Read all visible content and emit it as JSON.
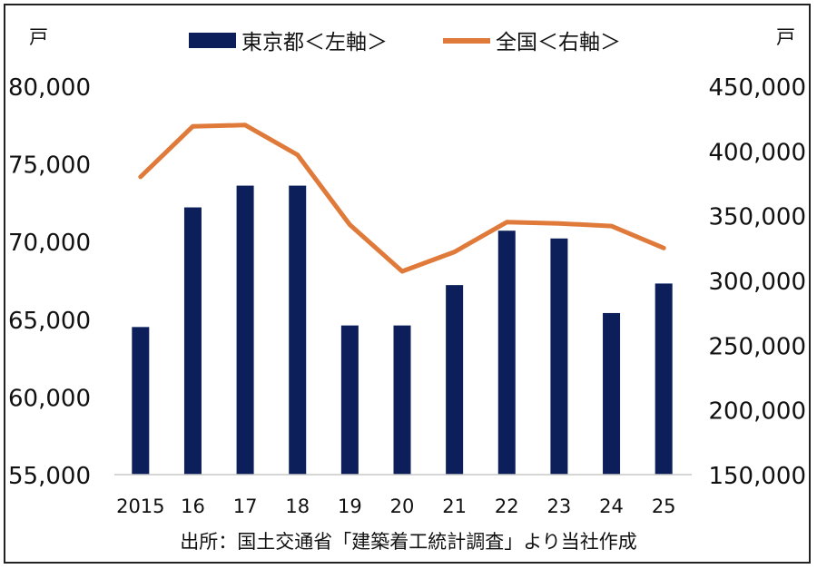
{
  "chart_data": {
    "type": "bar+line",
    "title": "",
    "categories": [
      "2015",
      "16",
      "17",
      "18",
      "19",
      "20",
      "21",
      "22",
      "23",
      "24",
      "25"
    ],
    "series": [
      {
        "name": "東京都＜左軸＞",
        "type": "bar",
        "axis": "left",
        "color": "#0c1f5a",
        "values": [
          64500,
          72200,
          73600,
          73600,
          64600,
          64600,
          67200,
          70700,
          70200,
          65400,
          67300
        ]
      },
      {
        "name": "全国＜右軸＞",
        "type": "line",
        "axis": "right",
        "color": "#e07a3a",
        "values": [
          380000,
          419000,
          420000,
          397000,
          343000,
          307000,
          322000,
          345000,
          344000,
          342000,
          325000
        ]
      }
    ],
    "left_axis": {
      "unit": "戸",
      "ylim": [
        55000,
        80000
      ],
      "ticks": [
        55000,
        60000,
        65000,
        70000,
        75000,
        80000
      ],
      "tick_labels": [
        "55,000",
        "60,000",
        "65,000",
        "70,000",
        "75,000",
        "80,000"
      ]
    },
    "right_axis": {
      "unit": "戸",
      "ylim": [
        150000,
        450000
      ],
      "ticks": [
        150000,
        200000,
        250000,
        300000,
        350000,
        400000,
        450000
      ],
      "tick_labels": [
        "150,000",
        "200,000",
        "250,000",
        "300,000",
        "350,000",
        "400,000",
        "450,000"
      ]
    },
    "legend_placement": "top-center",
    "grid": false
  },
  "legend": {
    "bar_label": "東京都＜左軸＞",
    "line_label": "全国＜右軸＞"
  },
  "source_note": "出所：国土交通省「建築着工統計調査」より当社作成"
}
